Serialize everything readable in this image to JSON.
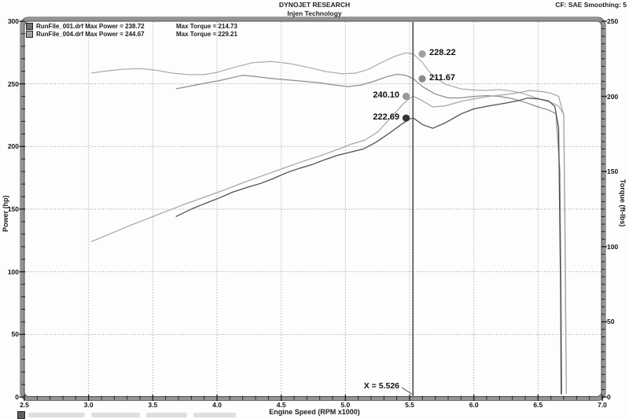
{
  "header": {
    "title": "DYNOJET RESEARCH",
    "subtitle": "Injen Technology",
    "cf_label": "CF: SAE  Smoothing: 5"
  },
  "legend": {
    "rows": [
      {
        "swatch_color": "#6e6e6e",
        "main": "RunFile_001.drf Max Power = 238.72",
        "torque": "Max Torque = 214.73"
      },
      {
        "swatch_color": "#a2a2a2",
        "main": "RunFile_004.drf Max Power = 244.67",
        "torque": "Max Torque = 229.21"
      }
    ]
  },
  "cursor": {
    "label": "X = 5.526",
    "rpm": 5.526
  },
  "annotations": [
    {
      "text": "228.22",
      "value": 228.22,
      "axis": "torque",
      "side": "right",
      "dot_color": "#9f9f9f"
    },
    {
      "text": "211.67",
      "value": 211.67,
      "axis": "torque",
      "side": "right",
      "dot_color": "#8a8a8a"
    },
    {
      "text": "240.10",
      "value": 240.1,
      "axis": "power",
      "side": "left",
      "dot_color": "#989898"
    },
    {
      "text": "222.69",
      "value": 222.69,
      "axis": "power",
      "side": "left",
      "dot_color": "#353535"
    }
  ],
  "chart_data": {
    "type": "line",
    "title": "DYNOJET RESEARCH - Injen Technology",
    "xlabel": "Engine Speed (RPM x1000)",
    "ylabel_left": "Power (hp)",
    "ylabel_right": "Torque (ft-lbs)",
    "grid": true,
    "legend_position": "top-left",
    "axes": {
      "rpm": {
        "min": 2.5,
        "max": 7.0,
        "major": 0.5,
        "minor": 0.1,
        "tick_labels": [
          "2.5",
          "3.0",
          "3.5",
          "4.0",
          "4.5",
          "5.0",
          "5.5",
          "6.0",
          "6.5",
          "7.0"
        ]
      },
      "power": {
        "min": 0,
        "max": 300,
        "major": 50,
        "minor": 10,
        "tick_labels": [
          "0",
          "50",
          "100",
          "150",
          "200",
          "250",
          "300"
        ]
      },
      "torque": {
        "min": 0,
        "max": 250,
        "major": 50,
        "minor": 5,
        "tick_labels": [
          "0",
          "50",
          "100",
          "150",
          "200",
          "250"
        ]
      }
    },
    "cursor_x": 5.526,
    "series": [
      {
        "name": "RunFile_004 Torque",
        "axis": "torque",
        "color": "#adadad",
        "max": 229.21,
        "points": [
          [
            3.02,
            215.5
          ],
          [
            3.1,
            216.5
          ],
          [
            3.25,
            218
          ],
          [
            3.4,
            218.5
          ],
          [
            3.52,
            217.5
          ],
          [
            3.65,
            215.5
          ],
          [
            3.78,
            214.5
          ],
          [
            3.9,
            214.5
          ],
          [
            4.0,
            216
          ],
          [
            4.12,
            219
          ],
          [
            4.28,
            222.5
          ],
          [
            4.42,
            223.2
          ],
          [
            4.55,
            222
          ],
          [
            4.7,
            219.5
          ],
          [
            4.85,
            216.5
          ],
          [
            4.98,
            215
          ],
          [
            5.08,
            215.5
          ],
          [
            5.18,
            218
          ],
          [
            5.28,
            222.5
          ],
          [
            5.38,
            226.5
          ],
          [
            5.47,
            229.0
          ],
          [
            5.53,
            228.2
          ],
          [
            5.6,
            222.5
          ],
          [
            5.68,
            213.5
          ],
          [
            5.78,
            208
          ],
          [
            5.9,
            205
          ],
          [
            6.0,
            204.2
          ],
          [
            6.1,
            204
          ],
          [
            6.2,
            204.5
          ],
          [
            6.3,
            203.5
          ],
          [
            6.4,
            201.5
          ],
          [
            6.5,
            198.5
          ],
          [
            6.6,
            196
          ],
          [
            6.66,
            193.5
          ],
          [
            6.7,
            188
          ],
          [
            6.71,
            120
          ],
          [
            6.72,
            2
          ]
        ]
      },
      {
        "name": "RunFile_001 Torque",
        "axis": "torque",
        "color": "#8c8c8c",
        "max": 214.73,
        "points": [
          [
            3.68,
            205
          ],
          [
            3.8,
            207
          ],
          [
            3.92,
            209
          ],
          [
            4.02,
            210.5
          ],
          [
            4.12,
            212.5
          ],
          [
            4.2,
            214
          ],
          [
            4.3,
            213.2
          ],
          [
            4.42,
            212
          ],
          [
            4.55,
            211
          ],
          [
            4.68,
            210
          ],
          [
            4.8,
            209
          ],
          [
            4.92,
            207.5
          ],
          [
            5.02,
            206.5
          ],
          [
            5.12,
            207.5
          ],
          [
            5.22,
            210
          ],
          [
            5.32,
            213
          ],
          [
            5.4,
            214.7
          ],
          [
            5.47,
            214
          ],
          [
            5.53,
            211.7
          ],
          [
            5.6,
            206.5
          ],
          [
            5.7,
            201.5
          ],
          [
            5.8,
            199
          ],
          [
            5.9,
            199
          ],
          [
            6.0,
            200
          ],
          [
            6.1,
            200.5
          ],
          [
            6.2,
            200
          ],
          [
            6.3,
            198.5
          ],
          [
            6.4,
            196
          ],
          [
            6.5,
            193
          ],
          [
            6.58,
            191
          ],
          [
            6.64,
            188.5
          ],
          [
            6.67,
            150
          ],
          [
            6.68,
            60
          ],
          [
            6.685,
            2
          ]
        ]
      },
      {
        "name": "RunFile_004 Power",
        "axis": "power",
        "color": "#a6a6a6",
        "max": 244.67,
        "points": [
          [
            3.02,
            124
          ],
          [
            3.15,
            129.5
          ],
          [
            3.3,
            136
          ],
          [
            3.45,
            142
          ],
          [
            3.6,
            148
          ],
          [
            3.75,
            154
          ],
          [
            3.9,
            159.5
          ],
          [
            4.05,
            165
          ],
          [
            4.2,
            171
          ],
          [
            4.35,
            176.5
          ],
          [
            4.5,
            182
          ],
          [
            4.65,
            187.5
          ],
          [
            4.8,
            192.5
          ],
          [
            4.95,
            198
          ],
          [
            5.05,
            202
          ],
          [
            5.15,
            205
          ],
          [
            5.25,
            211.5
          ],
          [
            5.35,
            222.5
          ],
          [
            5.45,
            234
          ],
          [
            5.5,
            238.5
          ],
          [
            5.53,
            240.1
          ],
          [
            5.6,
            236.5
          ],
          [
            5.68,
            231.5
          ],
          [
            5.78,
            232.5
          ],
          [
            5.9,
            236
          ],
          [
            6.0,
            238
          ],
          [
            6.12,
            240
          ],
          [
            6.25,
            241.5
          ],
          [
            6.35,
            243
          ],
          [
            6.44,
            244.7
          ],
          [
            6.52,
            244
          ],
          [
            6.6,
            242.5
          ],
          [
            6.66,
            240
          ],
          [
            6.7,
            225
          ],
          [
            6.71,
            120
          ],
          [
            6.72,
            3
          ]
        ]
      },
      {
        "name": "RunFile_001 Power",
        "axis": "power",
        "color": "#4d4d4d",
        "max": 238.72,
        "points": [
          [
            3.68,
            144
          ],
          [
            3.8,
            150
          ],
          [
            3.92,
            155
          ],
          [
            4.02,
            159
          ],
          [
            4.12,
            163.5
          ],
          [
            4.24,
            167.5
          ],
          [
            4.34,
            170.5
          ],
          [
            4.44,
            174.5
          ],
          [
            4.54,
            179
          ],
          [
            4.64,
            182.5
          ],
          [
            4.74,
            185.5
          ],
          [
            4.84,
            189.5
          ],
          [
            4.94,
            193
          ],
          [
            5.04,
            195.5
          ],
          [
            5.14,
            198
          ],
          [
            5.24,
            203.5
          ],
          [
            5.34,
            210.5
          ],
          [
            5.44,
            218
          ],
          [
            5.5,
            222
          ],
          [
            5.53,
            222.7
          ],
          [
            5.6,
            217.5
          ],
          [
            5.68,
            214.5
          ],
          [
            5.78,
            219
          ],
          [
            5.9,
            226
          ],
          [
            6.0,
            230
          ],
          [
            6.12,
            232.5
          ],
          [
            6.24,
            234.5
          ],
          [
            6.34,
            236.5
          ],
          [
            6.42,
            238.7
          ],
          [
            6.5,
            238
          ],
          [
            6.58,
            236.5
          ],
          [
            6.63,
            232
          ],
          [
            6.66,
            215
          ],
          [
            6.675,
            90
          ],
          [
            6.68,
            2
          ]
        ]
      }
    ]
  },
  "colors": {
    "frame_band": "#949494",
    "frame_edge": "#4a4a4a",
    "grid": "#909090",
    "cursor_line": "#5c5c5c",
    "tick": "#222222"
  }
}
